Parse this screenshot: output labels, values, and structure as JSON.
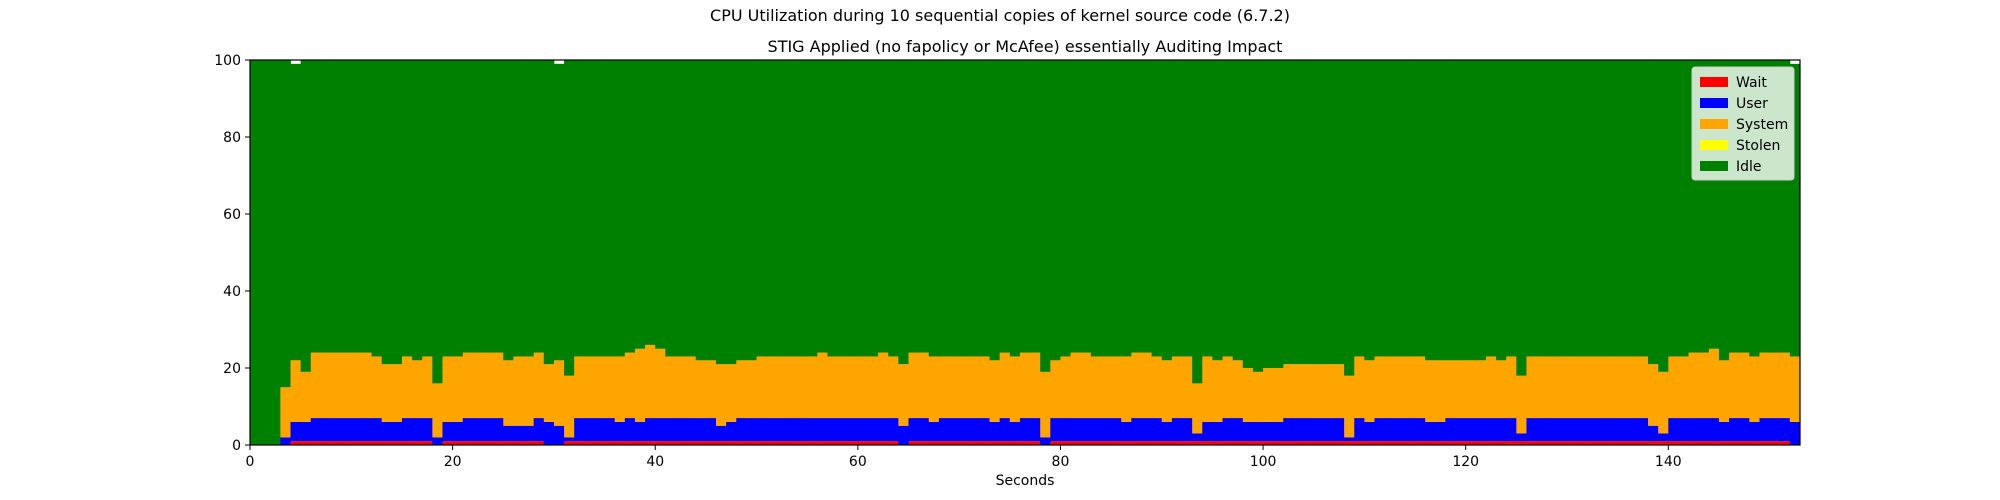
{
  "figure": {
    "suptitle": "CPU Utilization during 10 sequential copies of kernel source code (6.7.2)"
  },
  "chart_data": {
    "type": "bar",
    "stacked": true,
    "title": "STIG Applied (no fapolicy or McAfee) essentially Auditing Impact",
    "xlabel": "Seconds",
    "ylabel": "",
    "xlim": [
      0,
      153
    ],
    "ylim": [
      0,
      100
    ],
    "xticks": [
      0,
      20,
      40,
      60,
      80,
      100,
      120,
      140
    ],
    "yticks": [
      0,
      20,
      40,
      60,
      80,
      100
    ],
    "grid": false,
    "legend": "top-right",
    "x_start": 0,
    "bar_width": 1,
    "series": [
      {
        "name": "Wait",
        "color": "#ff0000",
        "values": [
          0,
          0,
          0,
          0,
          1,
          1,
          1,
          1,
          1,
          1,
          1,
          1,
          1,
          1,
          1,
          1,
          1,
          1,
          0,
          1,
          1,
          1,
          1,
          1,
          1,
          1,
          1,
          1,
          1,
          0,
          0,
          1,
          1,
          1,
          1,
          1,
          1,
          1,
          1,
          1,
          1,
          1,
          1,
          1,
          1,
          1,
          1,
          1,
          1,
          1,
          1,
          1,
          1,
          1,
          1,
          1,
          1,
          1,
          1,
          1,
          1,
          1,
          1,
          1,
          0,
          1,
          1,
          1,
          1,
          1,
          1,
          1,
          1,
          1,
          1,
          1,
          1,
          1,
          0,
          1,
          1,
          1,
          1,
          1,
          1,
          1,
          1,
          1,
          1,
          1,
          1,
          1,
          1,
          1,
          1,
          1,
          1,
          1,
          1,
          1,
          1,
          1,
          1,
          1,
          1,
          1,
          1,
          1,
          1,
          1,
          1,
          1,
          1,
          1,
          1,
          1,
          1,
          1,
          1,
          1,
          1,
          1,
          1,
          1,
          1,
          1,
          1,
          1,
          1,
          1,
          1,
          1,
          1,
          1,
          1,
          1,
          1,
          1,
          1,
          1,
          1,
          1,
          1,
          1,
          1,
          1,
          1,
          1,
          1,
          1,
          1,
          1,
          0
        ]
      },
      {
        "name": "User",
        "color": "#0000ff",
        "values": [
          0,
          0,
          0,
          2,
          5,
          5,
          6,
          6,
          6,
          6,
          6,
          6,
          6,
          5,
          5,
          6,
          6,
          6,
          2,
          5,
          5,
          6,
          6,
          6,
          6,
          4,
          4,
          4,
          6,
          6,
          5,
          1,
          6,
          6,
          6,
          6,
          5,
          6,
          5,
          6,
          6,
          6,
          6,
          6,
          6,
          6,
          4,
          5,
          6,
          6,
          6,
          6,
          6,
          6,
          6,
          6,
          6,
          6,
          6,
          6,
          6,
          6,
          6,
          6,
          5,
          6,
          6,
          5,
          6,
          6,
          6,
          6,
          6,
          5,
          6,
          5,
          6,
          6,
          2,
          6,
          6,
          6,
          6,
          6,
          6,
          6,
          5,
          6,
          6,
          6,
          5,
          6,
          6,
          2,
          5,
          5,
          6,
          6,
          5,
          5,
          5,
          5,
          6,
          6,
          6,
          6,
          6,
          6,
          1,
          6,
          5,
          6,
          6,
          6,
          6,
          6,
          5,
          5,
          6,
          6,
          6,
          6,
          6,
          6,
          6,
          2,
          6,
          6,
          6,
          6,
          6,
          6,
          6,
          6,
          6,
          6,
          6,
          6,
          4,
          2,
          6,
          6,
          6,
          6,
          6,
          5,
          6,
          6,
          5,
          6,
          6,
          6,
          6,
          0
        ]
      },
      {
        "name": "System",
        "color": "#ffa500",
        "values": [
          0,
          0,
          0,
          13,
          16,
          13,
          17,
          17,
          17,
          17,
          17,
          17,
          16,
          15,
          15,
          16,
          15,
          16,
          14,
          17,
          17,
          17,
          17,
          17,
          17,
          17,
          18,
          18,
          17,
          15,
          17,
          16,
          16,
          16,
          16,
          16,
          17,
          17,
          19,
          19,
          18,
          16,
          16,
          16,
          15,
          15,
          16,
          15,
          15,
          15,
          16,
          16,
          16,
          16,
          16,
          16,
          17,
          16,
          16,
          16,
          16,
          16,
          17,
          16,
          16,
          17,
          17,
          17,
          16,
          16,
          16,
          16,
          16,
          16,
          17,
          17,
          17,
          17,
          17,
          15,
          16,
          17,
          17,
          16,
          16,
          16,
          17,
          17,
          17,
          16,
          16,
          16,
          16,
          13,
          17,
          16,
          16,
          15,
          14,
          13,
          14,
          14,
          14,
          14,
          14,
          14,
          14,
          14,
          16,
          16,
          16,
          16,
          16,
          16,
          16,
          16,
          16,
          16,
          15,
          15,
          15,
          15,
          16,
          15,
          16,
          15,
          16,
          16,
          16,
          16,
          16,
          16,
          16,
          16,
          16,
          16,
          16,
          16,
          16,
          16,
          16,
          16,
          17,
          17,
          18,
          16,
          17,
          17,
          17,
          17,
          17,
          17,
          17,
          0
        ]
      },
      {
        "name": "Stolen",
        "color": "#ffff00",
        "values": [
          0,
          0,
          0,
          0,
          0,
          0,
          0,
          0,
          0,
          0,
          0,
          0,
          0,
          0,
          0,
          0,
          0,
          0,
          0,
          0,
          0,
          0,
          0,
          0,
          0,
          0,
          0,
          0,
          0,
          0,
          0,
          0,
          0,
          0,
          0,
          0,
          0,
          0,
          0,
          0,
          0,
          0,
          0,
          0,
          0,
          0,
          0,
          0,
          0,
          0,
          0,
          0,
          0,
          0,
          0,
          0,
          0,
          0,
          0,
          0,
          0,
          0,
          0,
          0,
          0,
          0,
          0,
          0,
          0,
          0,
          0,
          0,
          0,
          0,
          0,
          0,
          0,
          0,
          0,
          0,
          0,
          0,
          0,
          0,
          0,
          0,
          0,
          0,
          0,
          0,
          0,
          0,
          0,
          0,
          0,
          0,
          0,
          0,
          0,
          0,
          0,
          0,
          0,
          0,
          0,
          0,
          0,
          0,
          0,
          0,
          0,
          0,
          0,
          0,
          0,
          0,
          0,
          0,
          0,
          0,
          0,
          0,
          0,
          0,
          0,
          0,
          0,
          0,
          0,
          0,
          0,
          0,
          0,
          0,
          0,
          0,
          0,
          0,
          0,
          0,
          0,
          0,
          0,
          0,
          0,
          0,
          0,
          0,
          0,
          0,
          0,
          0,
          0
        ]
      },
      {
        "name": "Idle",
        "color": "#008000",
        "values": [
          100,
          100,
          100,
          85,
          77,
          81,
          76,
          76,
          76,
          76,
          76,
          76,
          77,
          79,
          79,
          77,
          78,
          77,
          84,
          77,
          77,
          76,
          76,
          76,
          76,
          78,
          77,
          77,
          76,
          79,
          77,
          82,
          77,
          77,
          77,
          77,
          77,
          76,
          75,
          74,
          75,
          77,
          77,
          77,
          78,
          78,
          79,
          79,
          78,
          78,
          77,
          77,
          77,
          77,
          77,
          77,
          76,
          77,
          77,
          77,
          77,
          77,
          76,
          77,
          79,
          76,
          76,
          77,
          77,
          77,
          77,
          77,
          77,
          78,
          76,
          77,
          76,
          76,
          81,
          78,
          77,
          76,
          76,
          77,
          77,
          77,
          77,
          76,
          76,
          77,
          78,
          77,
          77,
          84,
          77,
          78,
          77,
          78,
          80,
          81,
          80,
          80,
          79,
          79,
          79,
          79,
          79,
          79,
          82,
          77,
          78,
          77,
          77,
          77,
          77,
          77,
          78,
          78,
          78,
          78,
          78,
          78,
          77,
          78,
          77,
          82,
          77,
          77,
          77,
          77,
          77,
          77,
          77,
          77,
          77,
          77,
          77,
          77,
          79,
          81,
          77,
          77,
          76,
          76,
          75,
          78,
          76,
          76,
          77,
          76,
          76,
          76,
          76,
          100
        ]
      }
    ]
  }
}
